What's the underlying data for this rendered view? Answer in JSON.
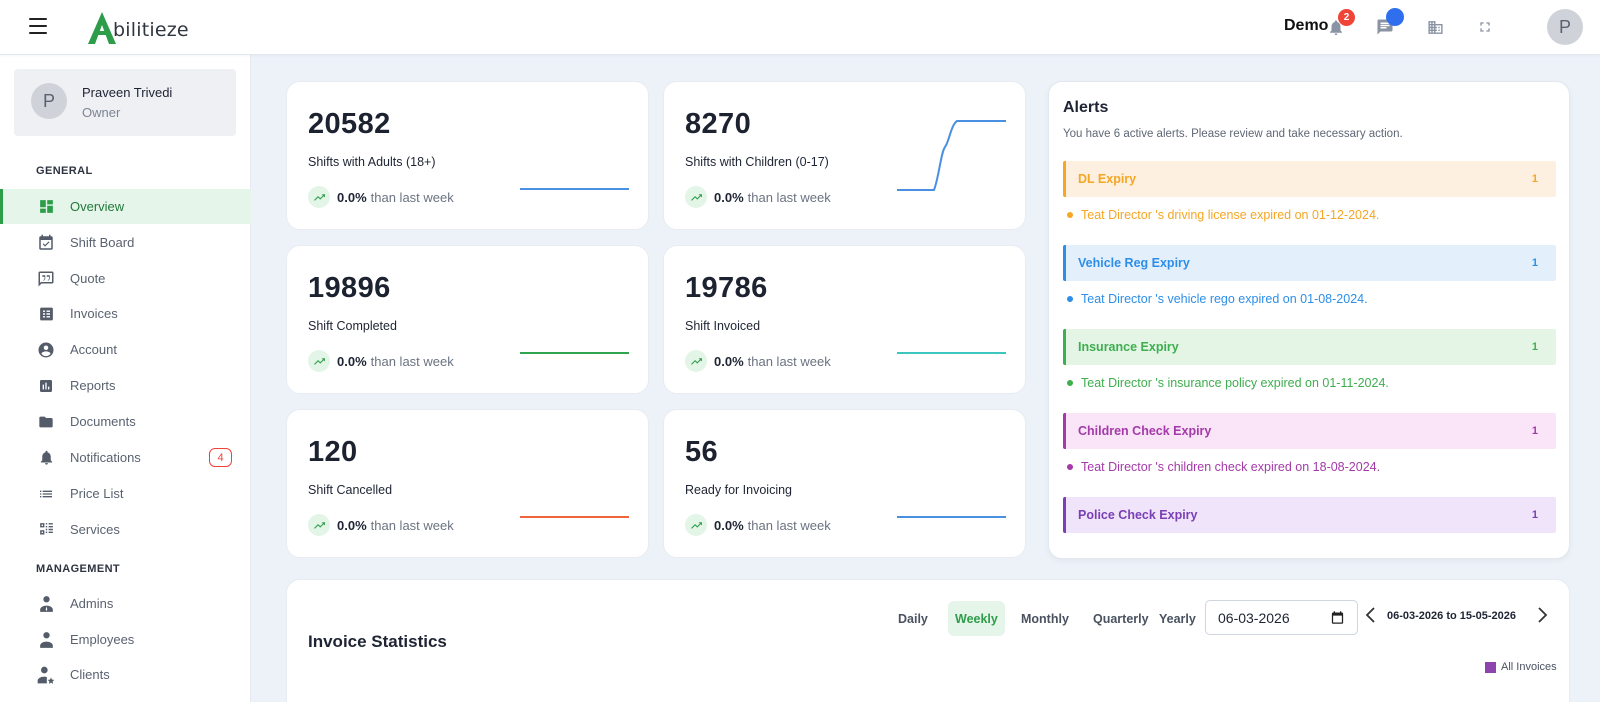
{
  "header": {
    "logo_text": "bilitieze",
    "user_name": "Demo",
    "notification_count": "2",
    "avatar_initial": "P"
  },
  "sidebar": {
    "profile": {
      "initial": "P",
      "name": "Praveen Trivedi",
      "role": "Owner"
    },
    "sections": {
      "general": "GENERAL",
      "management": "MANAGEMENT"
    },
    "items": [
      {
        "label": "Overview",
        "icon": "dashboard-icon",
        "active": true
      },
      {
        "label": "Shift Board",
        "icon": "calendar-check-icon"
      },
      {
        "label": "Quote",
        "icon": "quote-icon"
      },
      {
        "label": "Invoices",
        "icon": "invoice-icon"
      },
      {
        "label": "Account",
        "icon": "account-circle-icon"
      },
      {
        "label": "Reports",
        "icon": "bar-chart-icon"
      },
      {
        "label": "Documents",
        "icon": "folder-icon"
      },
      {
        "label": "Notifications",
        "icon": "bell-icon",
        "count": "4"
      },
      {
        "label": "Price List",
        "icon": "list-icon"
      },
      {
        "label": "Services",
        "icon": "services-icon"
      }
    ],
    "management_items": [
      {
        "label": "Admins",
        "icon": "admin-icon"
      },
      {
        "label": "Employees",
        "icon": "employee-icon"
      },
      {
        "label": "Clients",
        "icon": "client-icon"
      }
    ]
  },
  "stats": [
    {
      "value": "20582",
      "label": "Shifts with Adults (18+)",
      "change": "0.0%",
      "change_text": "than last week",
      "color": "#4a90e2"
    },
    {
      "value": "8270",
      "label": "Shifts with Children (0-17)",
      "change": "0.0%",
      "change_text": "than last week",
      "color": "#4a90e2"
    },
    {
      "value": "19896",
      "label": "Shift Completed",
      "change": "0.0%",
      "change_text": "than last week",
      "color": "#2ea44f"
    },
    {
      "value": "19786",
      "label": "Shift Invoiced",
      "change": "0.0%",
      "change_text": "than last week",
      "color": "#3cc6c0"
    },
    {
      "value": "120",
      "label": "Shift Cancelled",
      "change": "0.0%",
      "change_text": "than last week",
      "color": "#f0643c"
    },
    {
      "value": "56",
      "label": "Ready for Invoicing",
      "change": "0.0%",
      "change_text": "than last week",
      "color": "#4a90e2"
    }
  ],
  "alerts": {
    "title": "Alerts",
    "subtitle": "You have 6 active alerts. Please review and take necessary action.",
    "groups": [
      {
        "title": "DL Expiry",
        "count": "1",
        "message": "Teat Director 's driving license expired on 01-12-2024.",
        "color": "#f5a623",
        "bg": "#fdf0e1"
      },
      {
        "title": "Vehicle Reg Expiry",
        "count": "1",
        "message": "Teat Director 's vehicle rego expired on 01-08-2024.",
        "color": "#2d8ee8",
        "bg": "#e3f0fc"
      },
      {
        "title": "Insurance Expiry",
        "count": "1",
        "message": "Teat Director 's insurance policy expired on 01-11-2024.",
        "color": "#3fae4f",
        "bg": "#e4f5e6"
      },
      {
        "title": "Children Check Expiry",
        "count": "1",
        "message": "Teat Director 's children check expired on 18-08-2024.",
        "color": "#a43aa9",
        "bg": "#f9e4f8"
      },
      {
        "title": "Police Check Expiry",
        "count": "1",
        "message": "",
        "color": "#7a3fb5",
        "bg": "#efe4fa"
      }
    ]
  },
  "invoice_stats": {
    "title": "Invoice Statistics",
    "periods": [
      "Daily",
      "Weekly",
      "Monthly",
      "Quarterly",
      "Yearly"
    ],
    "active_period": "Weekly",
    "date_value": "06-03-2026",
    "range": "06-03-2026 to 15-05-2026",
    "legend": "All Invoices"
  }
}
